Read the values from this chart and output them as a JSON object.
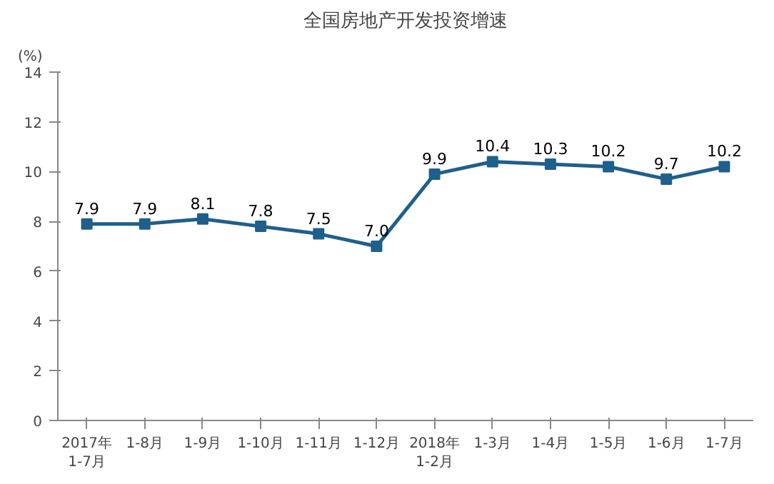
{
  "chart_data": {
    "type": "line",
    "title": "全国房地产开发投资增速",
    "ylabel": "(%)",
    "categories": [
      "2017年\n1-7月",
      "1-8月",
      "1-9月",
      "1-10月",
      "1-11月",
      "1-12月",
      "2018年\n1-2月",
      "1-3月",
      "1-4月",
      "1-5月",
      "1-6月",
      "1-7月"
    ],
    "series": [
      {
        "color": "#1f5f8b",
        "values": [
          7.9,
          7.9,
          8.1,
          7.8,
          7.5,
          7.0,
          9.9,
          10.4,
          10.3,
          10.2,
          9.7,
          10.2
        ]
      }
    ],
    "value_labels": [
      "7.9",
      "7.9",
      "8.1",
      "7.8",
      "7.5",
      "7.0",
      "9.9",
      "10.4",
      "10.3",
      "10.2",
      "9.7",
      "10.2"
    ],
    "ylim": [
      0,
      14
    ],
    "yticks": [
      0,
      2,
      4,
      6,
      8,
      10,
      12,
      14
    ],
    "grid": false,
    "marker": "square",
    "line_style": "solid"
  }
}
